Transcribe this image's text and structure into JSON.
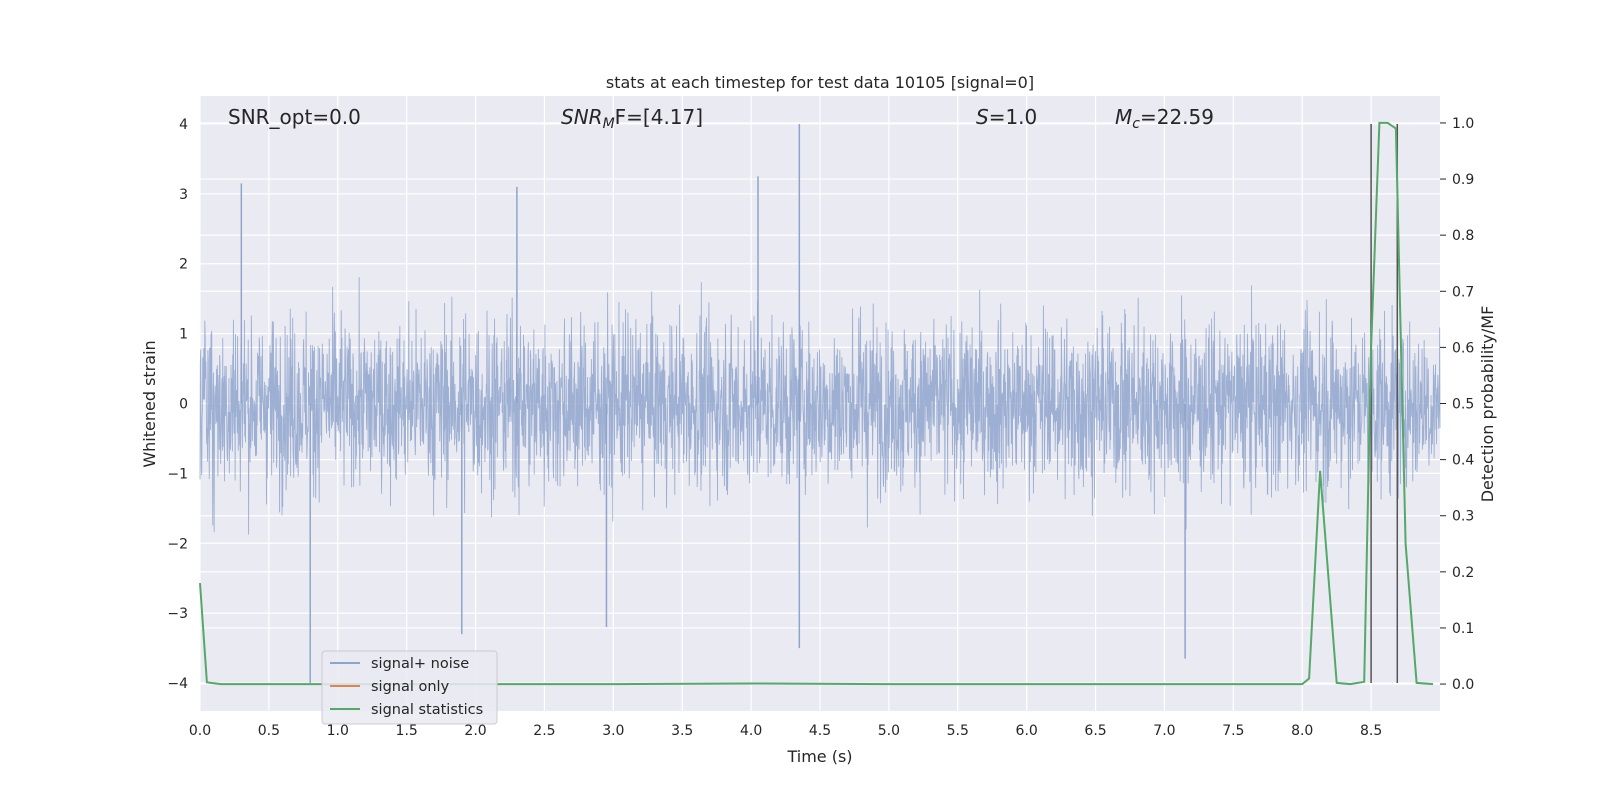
{
  "chart_data": {
    "type": "line",
    "title": "stats at each timestep for test data 10105 [signal=0]",
    "xlabel": "Time (s)",
    "ylabel": "Whitened strain",
    "y2label": "Detection probability/MF",
    "xlim": [
      0.0,
      9.0
    ],
    "ylim": [
      -4.4,
      4.4
    ],
    "y2lim": [
      -0.048,
      1.048
    ],
    "xticks": [
      "0.0",
      "0.5",
      "1.0",
      "1.5",
      "2.0",
      "2.5",
      "3.0",
      "3.5",
      "4.0",
      "4.5",
      "5.0",
      "5.5",
      "6.0",
      "6.5",
      "7.0",
      "7.5",
      "8.0",
      "8.5"
    ],
    "yticks": [
      "4",
      "3",
      "2",
      "1",
      "0",
      "−1",
      "−2",
      "−3",
      "−4"
    ],
    "y2ticks": [
      "1.0",
      "0.9",
      "0.8",
      "0.7",
      "0.6",
      "0.5",
      "0.4",
      "0.3",
      "0.2",
      "0.1",
      "0.0"
    ],
    "grid": true,
    "legend_position": "lower-left",
    "annotations": {
      "snr_opt": "SNR_opt=0.0",
      "snr_mf_main": "SNR",
      "snr_mf_sub": "M",
      "snr_mf_rest": "F=[4.17]",
      "s_main": "S",
      "s_rest": "=1.0",
      "mc_main": "M",
      "mc_sub": "c",
      "mc_rest": "=22.59"
    },
    "series": [
      {
        "name": "signal+ noise",
        "color": "#8fa4cc",
        "description_values": "whitened noise, approx. ±1.6 core, peaks up to 4.0 near t=4.35 s",
        "peaks": [
          {
            "x": 0.3,
            "y": 3.15
          },
          {
            "x": 2.3,
            "y": 3.1
          },
          {
            "x": 4.05,
            "y": 3.25
          },
          {
            "x": 4.35,
            "y": 4.0
          },
          {
            "x": 4.35,
            "y": -3.5
          },
          {
            "x": 0.8,
            "y": -4.0
          },
          {
            "x": 7.15,
            "y": -3.65
          },
          {
            "x": 2.95,
            "y": -3.2
          },
          {
            "x": 1.9,
            "y": -3.3
          }
        ]
      },
      {
        "name": "signal only",
        "color": "#dd8452",
        "values": []
      },
      {
        "name": "signal statistics",
        "color": "#55a868",
        "x": [
          0.0,
          0.05,
          0.15,
          0.5,
          1.0,
          2.0,
          3.0,
          4.0,
          5.0,
          6.0,
          7.0,
          7.5,
          8.0,
          8.05,
          8.13,
          8.25,
          8.35,
          8.45,
          8.5,
          8.56,
          8.62,
          8.68,
          8.75,
          8.83,
          8.95
        ],
        "values": [
          0.18,
          0.003,
          0.0,
          0.0,
          0.0,
          0.0,
          0.0,
          0.001,
          0.0,
          0.0,
          0.0,
          0.0,
          0.0,
          0.01,
          0.38,
          0.002,
          0.0,
          0.004,
          0.6,
          1.0,
          1.0,
          0.99,
          0.25,
          0.002,
          0.0
        ]
      }
    ],
    "vertical_lines": [
      8.5,
      8.69
    ]
  }
}
